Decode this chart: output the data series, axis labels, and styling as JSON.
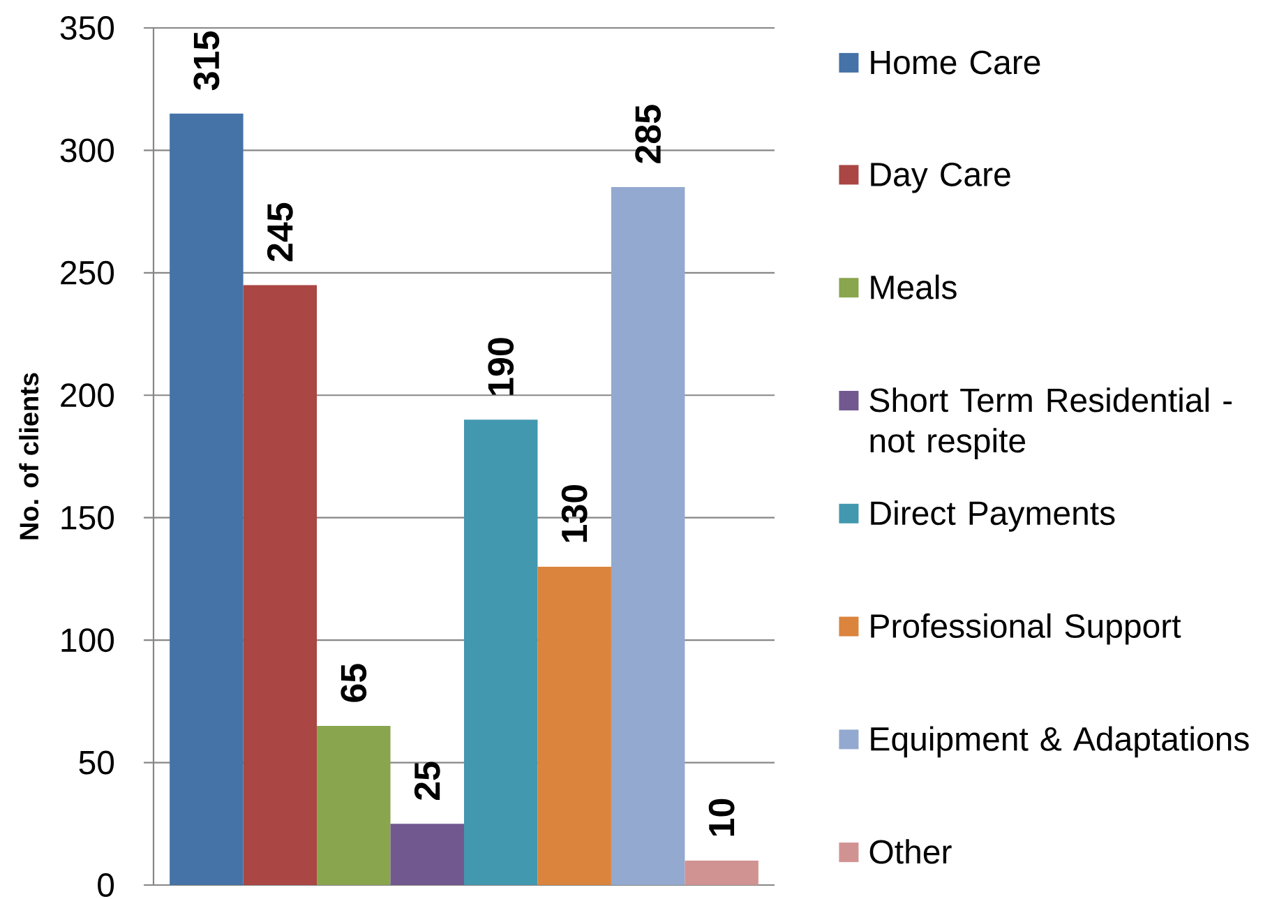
{
  "chart_data": {
    "type": "bar",
    "ylabel": "No. of clients",
    "categories": [
      null
    ],
    "series": [
      {
        "name": "Home Care",
        "color": "#4572a7",
        "values": [
          315
        ]
      },
      {
        "name": "Day Care",
        "color": "#aa4643",
        "values": [
          245
        ]
      },
      {
        "name": "Meals",
        "color": "#89a54e",
        "values": [
          65
        ]
      },
      {
        "name": "Short Term Residential - not respite",
        "color": "#71588f",
        "values": [
          25
        ]
      },
      {
        "name": "Direct Payments",
        "color": "#4198af",
        "values": [
          190
        ]
      },
      {
        "name": "Professional Support",
        "color": "#db843d",
        "values": [
          130
        ]
      },
      {
        "name": "Equipment & Adaptations",
        "color": "#93a9cf",
        "values": [
          285
        ]
      },
      {
        "name": "Other",
        "color": "#d19392",
        "values": [
          10
        ]
      }
    ],
    "ylim": [
      0,
      350
    ],
    "yticks": [
      0,
      50,
      100,
      150,
      200,
      250,
      300,
      350
    ],
    "grid": "y",
    "legend": "right",
    "data_labels": true
  }
}
